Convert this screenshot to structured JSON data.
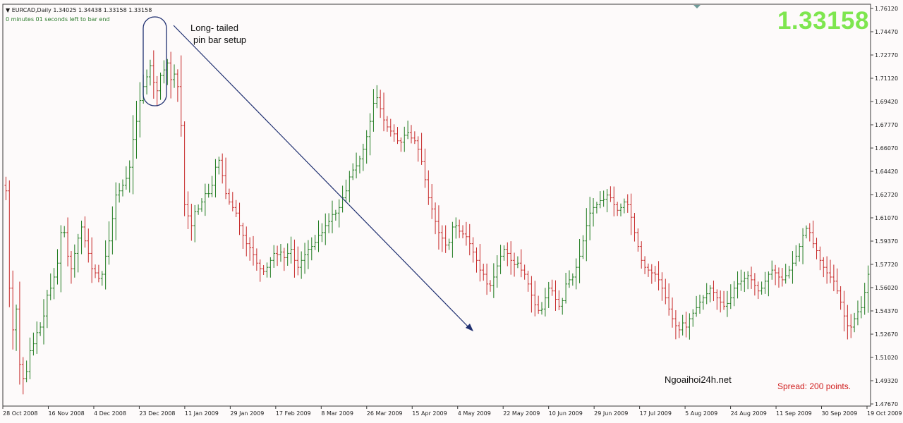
{
  "header": {
    "symbol_line": "EURCAD,Daily  1.34025 1.34438 1.33158 1.33158",
    "timer": "0 minutes 01 seconds left to bar end"
  },
  "big_price": "1.33158",
  "annotation": {
    "line1": "Long- tailed",
    "line2": "pin bar setup"
  },
  "watermark": "Ngoaihoi24h.net",
  "spread": "Spread: 200 points.",
  "colors": {
    "up": "#1e7a1e",
    "down": "#c62828",
    "trendline": "#1f2f70",
    "price": "#7ee64f",
    "grid": "#8fa0a0"
  },
  "chart_data": {
    "type": "ohlc",
    "symbol": "EURCAD",
    "timeframe": "Daily",
    "y_ticks": [
      "1.76120",
      "1.74470",
      "1.72770",
      "1.71120",
      "1.69420",
      "1.67770",
      "1.66070",
      "1.64420",
      "1.62720",
      "1.61070",
      "1.59370",
      "1.57720",
      "1.56020",
      "1.54370",
      "1.52670",
      "1.51020",
      "1.49320",
      "1.47670"
    ],
    "ylim": [
      1.4767,
      1.7612
    ],
    "x_ticks": [
      "28 Oct 2008",
      "16 Nov 2008",
      "4 Dec 2008",
      "23 Dec 2008",
      "11 Jan 2009",
      "29 Jan 2009",
      "17 Feb 2009",
      "8 Mar 2009",
      "26 Mar 2009",
      "15 Apr 2009",
      "4 May 2009",
      "22 May 2009",
      "10 Jun 2009",
      "29 Jun 2009",
      "17 Jul 2009",
      "5 Aug 2009",
      "24 Aug 2009",
      "11 Sep 2009",
      "30 Sep 2009",
      "19 Oct 2009"
    ],
    "closes": [
      1.63,
      1.56,
      1.53,
      1.545,
      1.505,
      1.495,
      1.5,
      1.515,
      1.52,
      1.528,
      1.532,
      1.54,
      1.555,
      1.56,
      1.568,
      1.578,
      1.6,
      1.6,
      1.583,
      1.574,
      1.585,
      1.596,
      1.604,
      1.594,
      1.585,
      1.574,
      1.571,
      1.567,
      1.57,
      1.583,
      1.594,
      1.61,
      1.627,
      1.63,
      1.634,
      1.639,
      1.647,
      1.667,
      1.68,
      1.695,
      1.705,
      1.712,
      1.72,
      1.708,
      1.702,
      1.713,
      1.717,
      1.722,
      1.71,
      1.714,
      1.705,
      1.677,
      1.62,
      1.612,
      1.605,
      1.615,
      1.617,
      1.622,
      1.628,
      1.628,
      1.634,
      1.647,
      1.652,
      1.641,
      1.628,
      1.622,
      1.618,
      1.614,
      1.605,
      1.598,
      1.592,
      1.589,
      1.584,
      1.578,
      1.574,
      1.572,
      1.575,
      1.58,
      1.585,
      1.584,
      1.586,
      1.582,
      1.585,
      1.588,
      1.58,
      1.575,
      1.58,
      1.584,
      1.588,
      1.59,
      1.593,
      1.598,
      1.6,
      1.605,
      1.608,
      1.613,
      1.614,
      1.618,
      1.625,
      1.63,
      1.64,
      1.645,
      1.648,
      1.653,
      1.66,
      1.669,
      1.68,
      1.693,
      1.697,
      1.689,
      1.681,
      1.676,
      1.673,
      1.671,
      1.666,
      1.665,
      1.67,
      1.672,
      1.668,
      1.666,
      1.66,
      1.651,
      1.638,
      1.625,
      1.617,
      1.608,
      1.6,
      1.596,
      1.591,
      1.593,
      1.604,
      1.605,
      1.601,
      1.599,
      1.597,
      1.592,
      1.586,
      1.58,
      1.573,
      1.57,
      1.563,
      1.562,
      1.568,
      1.576,
      1.583,
      1.588,
      1.585,
      1.58,
      1.577,
      1.578,
      1.573,
      1.57,
      1.563,
      1.555,
      1.548,
      1.544,
      1.545,
      1.553,
      1.56,
      1.558,
      1.552,
      1.547,
      1.551,
      1.563,
      1.566,
      1.568,
      1.575,
      1.583,
      1.594,
      1.605,
      1.614,
      1.618,
      1.62,
      1.623,
      1.624,
      1.627,
      1.625,
      1.62,
      1.616,
      1.618,
      1.622,
      1.62,
      1.611,
      1.6,
      1.59,
      1.58,
      1.575,
      1.573,
      1.571,
      1.57,
      1.566,
      1.56,
      1.553,
      1.545,
      1.538,
      1.533,
      1.53,
      1.535,
      1.532,
      1.538,
      1.542,
      1.546,
      1.55,
      1.553,
      1.556,
      1.56,
      1.557,
      1.553,
      1.55,
      1.547,
      1.549,
      1.553,
      1.56,
      1.563,
      1.565,
      1.567,
      1.569,
      1.566,
      1.562,
      1.558,
      1.56,
      1.565,
      1.57,
      1.573,
      1.571,
      1.568,
      1.566,
      1.569,
      1.573,
      1.578,
      1.583,
      1.59,
      1.598,
      1.603,
      1.6,
      1.592,
      1.587,
      1.58,
      1.575,
      1.571,
      1.568,
      1.565,
      1.558,
      1.55,
      1.54,
      1.533,
      1.532,
      1.538,
      1.543,
      1.546,
      1.557,
      1.57
    ]
  }
}
